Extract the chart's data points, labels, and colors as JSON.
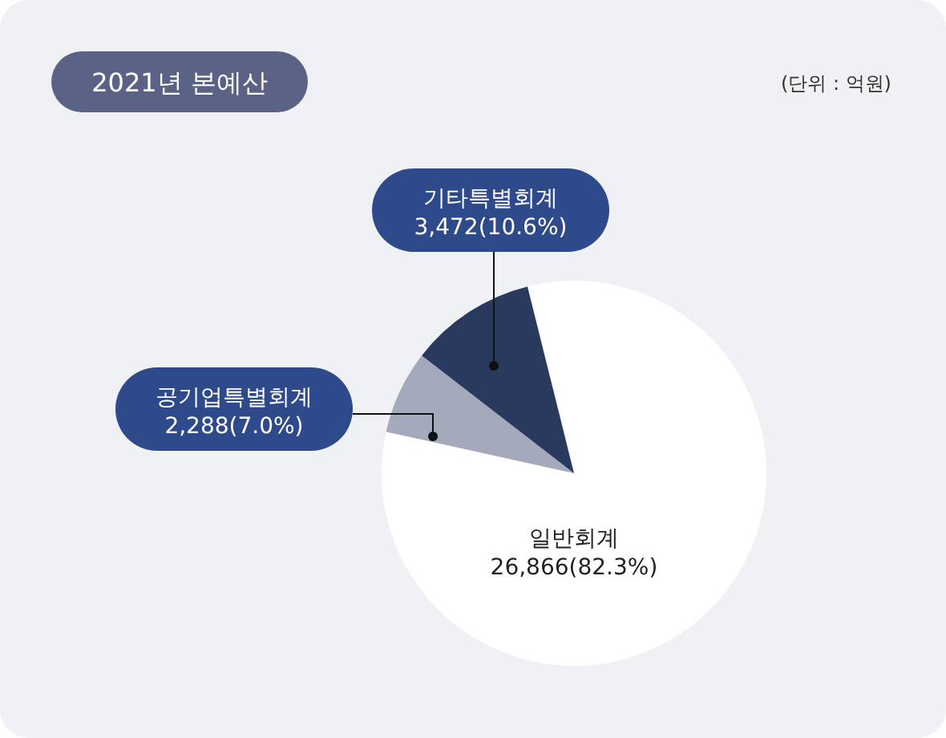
{
  "chart_data": {
    "type": "pie",
    "title": "2021년 본예산",
    "annotations": [
      "(단위 : 억원)"
    ],
    "categories": [
      "일반회계",
      "공기업특별회계",
      "기타특별회계"
    ],
    "values": [
      26866,
      2288,
      3472
    ],
    "value_labels": [
      "26,866(82.3%)",
      "2,288(7.0%)",
      "3,472(10.6%)"
    ],
    "colors": [
      "#ffffff",
      "#a4a9bc",
      "#2a3a5f"
    ],
    "legend": false
  }
}
